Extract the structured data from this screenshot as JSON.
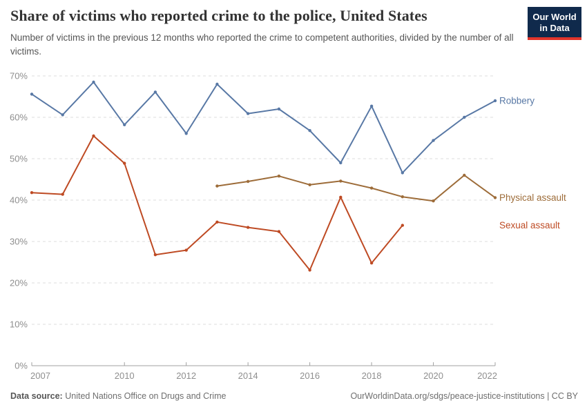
{
  "header": {
    "logo": {
      "line1": "Our World",
      "line2": "in Data",
      "bg_color": "#102A4C",
      "stripe_color": "#E2352B"
    }
  },
  "chart_data": {
    "type": "line",
    "title": "Share of victims who reported crime to the police, United States",
    "subtitle": "Number of victims in the previous 12 months who reported the crime to competent authorities, divided by the number of all victims.",
    "xlabel": "",
    "ylabel": "",
    "xlim": [
      2007,
      2022
    ],
    "ylim": [
      0,
      70
    ],
    "yticks": [
      0,
      10,
      20,
      30,
      40,
      50,
      60,
      70
    ],
    "ytick_suffix": "%",
    "xticks": [
      2007,
      2010,
      2012,
      2014,
      2016,
      2018,
      2020,
      2022
    ],
    "grid": "horizontal-dashed",
    "legend_position": "right-end-labels",
    "series": [
      {
        "name": "Robbery",
        "color": "#5878A5",
        "x": [
          2007,
          2008,
          2009,
          2010,
          2011,
          2012,
          2013,
          2014,
          2015,
          2016,
          2017,
          2018,
          2019,
          2020,
          2021,
          2022
        ],
        "values": [
          65.6,
          60.6,
          68.5,
          58.2,
          66.1,
          56.1,
          68.0,
          60.9,
          62.0,
          56.8,
          49.0,
          62.7,
          46.6,
          54.4,
          60.0,
          64.0
        ]
      },
      {
        "name": "Physical assault",
        "color": "#9D6C39",
        "x": [
          2013,
          2014,
          2015,
          2016,
          2017,
          2018,
          2019,
          2020,
          2021,
          2022
        ],
        "values": [
          43.4,
          44.5,
          45.8,
          43.7,
          44.6,
          42.9,
          40.8,
          39.8,
          46.0,
          40.6
        ]
      },
      {
        "name": "Sexual assault",
        "color": "#BE4A23",
        "x": [
          2007,
          2008,
          2009,
          2010,
          2011,
          2012,
          2013,
          2014,
          2015,
          2016,
          2017,
          2018,
          2019
        ],
        "values": [
          41.8,
          41.4,
          55.5,
          48.9,
          26.8,
          27.9,
          34.7,
          33.4,
          32.4,
          23.1,
          40.7,
          24.8,
          33.9
        ]
      }
    ]
  },
  "footer": {
    "source_label": "Data source:",
    "source_value": "United Nations Office on Drugs and Crime",
    "citation": "OurWorldinData.org/sdgs/peace-justice-institutions | CC BY"
  },
  "colors": {
    "grid": "#dcdcdc",
    "axis_line": "#a1a1a1",
    "axis_text": "#8e8e8e"
  }
}
